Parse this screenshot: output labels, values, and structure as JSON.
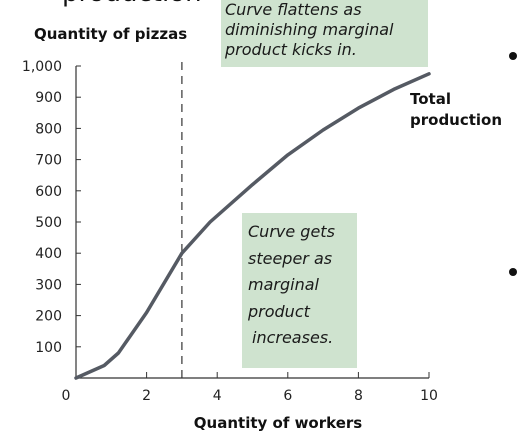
{
  "page": {
    "title_fragment": "production"
  },
  "chart_data": {
    "type": "line",
    "xlabel": "Quantity of workers",
    "ylabel": "Quantity of pizzas",
    "xlim": [
      0,
      10
    ],
    "ylim": [
      0,
      1000
    ],
    "x_ticks": [
      "0",
      "2",
      "4",
      "6",
      "8",
      "10"
    ],
    "y_ticks": [
      "100",
      "200",
      "300",
      "400",
      "500",
      "600",
      "700",
      "800",
      "900",
      "1,000"
    ],
    "series": [
      {
        "name": "Total production",
        "x": [
          0,
          0.8,
          1.2,
          2.0,
          3.0,
          3.8,
          5.0,
          6.0,
          7.0,
          8.0,
          9.0,
          10.0
        ],
        "y": [
          0,
          40,
          80,
          210,
          400,
          500,
          620,
          715,
          795,
          865,
          925,
          975
        ]
      }
    ],
    "reference_line": {
      "x": 3,
      "style": "dashed"
    },
    "annotations": [
      {
        "lines": [
          "Curve flattens as",
          "diminishing marginal",
          "product kicks in."
        ]
      },
      {
        "lines": [
          "Curve gets",
          "steeper as",
          "marginal",
          "product",
          "increases."
        ]
      }
    ],
    "colors": {
      "line": "#555a63",
      "annotation_bg": "#cfe3cf"
    }
  }
}
